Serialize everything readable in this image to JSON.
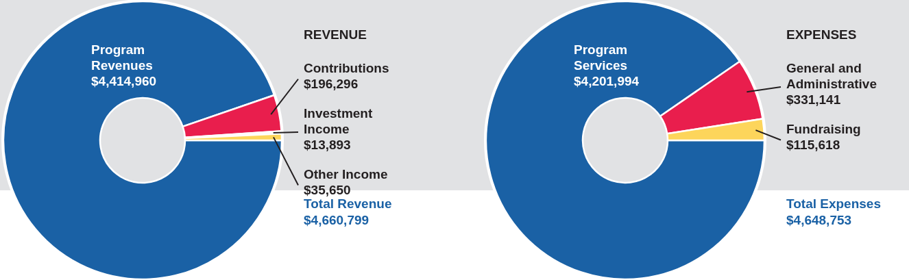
{
  "chart_data": [
    {
      "type": "donut",
      "title": "REVENUE",
      "categories": [
        "Program Revenues",
        "Contributions",
        "Investment Income",
        "Other Income"
      ],
      "values": [
        4414960,
        196296,
        13893,
        35650
      ],
      "value_labels": [
        "$4,414,960",
        "$196,296",
        "$13,893",
        "$35,650"
      ],
      "colors": [
        "#1a61a5",
        "#e91e4d",
        "#f7f7f7",
        "#fdd55b"
      ],
      "annotations": [
        "Total Revenue\n$4,660,799"
      ]
    },
    {
      "type": "donut",
      "title": "EXPENSES",
      "categories": [
        "Program Services",
        "General and Administrative",
        "Fundraising"
      ],
      "values": [
        4201994,
        331141,
        115618
      ],
      "value_labels": [
        "$4,201,994",
        "$331,141",
        "$115,618"
      ],
      "colors": [
        "#1a61a5",
        "#e91e4d",
        "#fdd55b"
      ],
      "annotations": [
        "Total Expenses\n$4,648,753"
      ]
    }
  ]
}
